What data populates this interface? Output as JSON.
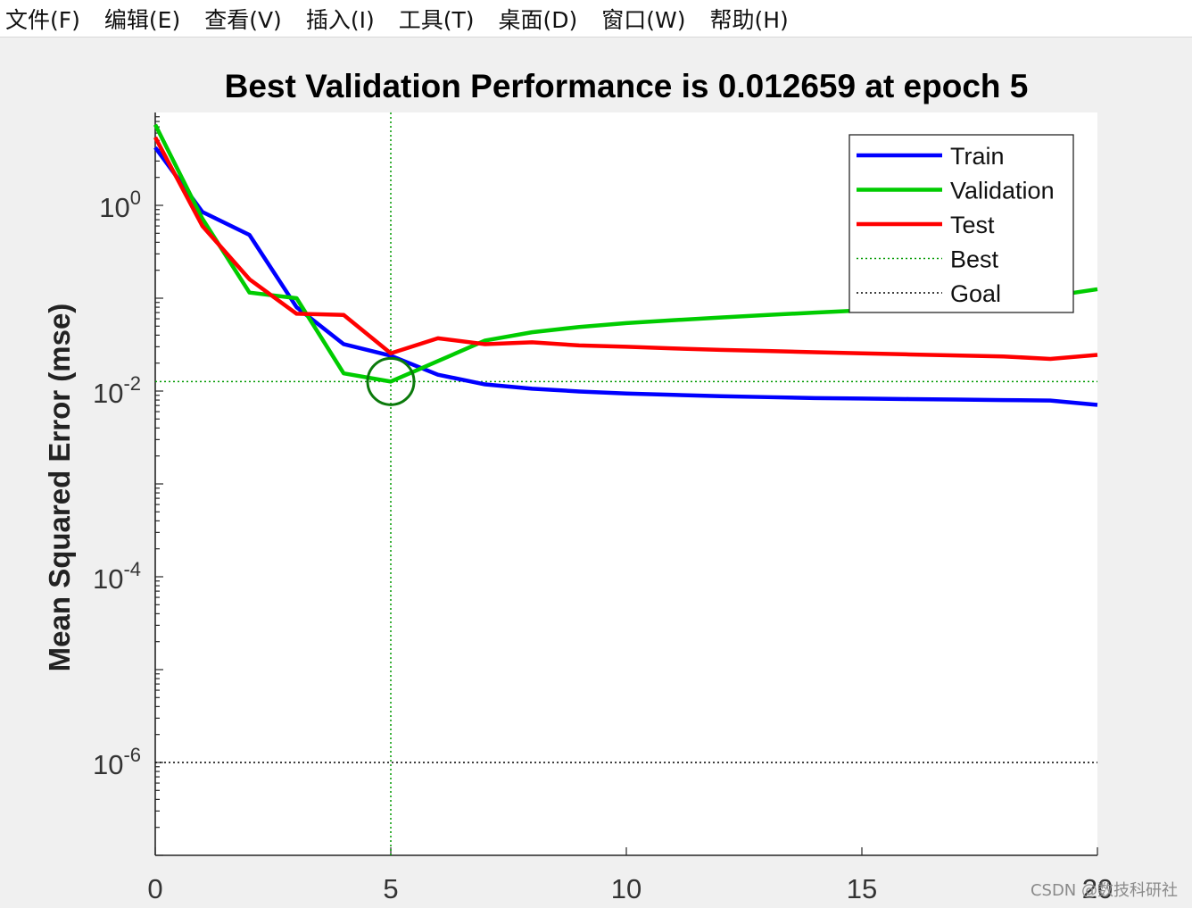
{
  "menubar": {
    "items": [
      "文件(F)",
      "编辑(E)",
      "查看(V)",
      "插入(I)",
      "工具(T)",
      "桌面(D)",
      "窗口(W)",
      "帮助(H)"
    ]
  },
  "watermark": "CSDN @数技科研社",
  "colors": {
    "train": "#0000ff",
    "validation": "#00cc00",
    "test": "#ff0000",
    "best": "#009900",
    "goal": "#000000",
    "figure_bg": "#f0f0f0",
    "axes_bg": "#ffffff"
  },
  "chart_data": {
    "type": "line",
    "title": "Best Validation Performance is 0.012659 at epoch 5",
    "xlabel": "",
    "ylabel": "Mean Squared Error  (mse)",
    "xlim": [
      0,
      20
    ],
    "ylim": [
      1e-07,
      10
    ],
    "yscale": "log",
    "xticks": [
      0,
      5,
      10,
      15,
      20
    ],
    "yticks": [
      1,
      0.01,
      0.0001,
      1e-06
    ],
    "ytick_labels": [
      {
        "base": "10",
        "exp": "0"
      },
      {
        "base": "10",
        "exp": "-2"
      },
      {
        "base": "10",
        "exp": "-4"
      },
      {
        "base": "10",
        "exp": "-6"
      }
    ],
    "grid": false,
    "legend_position": "top-right",
    "series": [
      {
        "name": "Train",
        "x": [
          0,
          1,
          2,
          3,
          4,
          5,
          6,
          7,
          8,
          9,
          10,
          11,
          12,
          13,
          14,
          15,
          16,
          17,
          18,
          19,
          20
        ],
        "y": [
          4.2,
          0.85,
          0.48,
          0.08,
          0.032,
          0.024,
          0.015,
          0.0118,
          0.0106,
          0.0099,
          0.0094,
          0.0091,
          0.0088,
          0.0086,
          0.0084,
          0.0083,
          0.0082,
          0.0081,
          0.008,
          0.0079,
          0.0071
        ]
      },
      {
        "name": "Validation",
        "x": [
          0,
          1,
          2,
          3,
          4,
          5,
          6,
          7,
          8,
          9,
          10,
          11,
          12,
          13,
          14,
          15,
          16,
          17,
          18,
          19,
          20
        ],
        "y": [
          7.4,
          0.72,
          0.115,
          0.1,
          0.0155,
          0.012659,
          0.021,
          0.035,
          0.043,
          0.049,
          0.054,
          0.058,
          0.062,
          0.066,
          0.07,
          0.074,
          0.079,
          0.085,
          0.092,
          0.105,
          0.125
        ]
      },
      {
        "name": "Test",
        "x": [
          0,
          1,
          2,
          3,
          4,
          5,
          6,
          7,
          8,
          9,
          10,
          11,
          12,
          13,
          14,
          15,
          16,
          17,
          18,
          19,
          20
        ],
        "y": [
          5.4,
          0.6,
          0.16,
          0.068,
          0.066,
          0.0255,
          0.037,
          0.032,
          0.0335,
          0.031,
          0.03,
          0.0288,
          0.0278,
          0.027,
          0.0262,
          0.0255,
          0.0248,
          0.0242,
          0.0236,
          0.0222,
          0.0245
        ]
      }
    ],
    "best": {
      "name": "Best",
      "epoch": 5,
      "value": 0.012659
    },
    "goal": {
      "name": "Goal",
      "value": 1e-06
    }
  }
}
